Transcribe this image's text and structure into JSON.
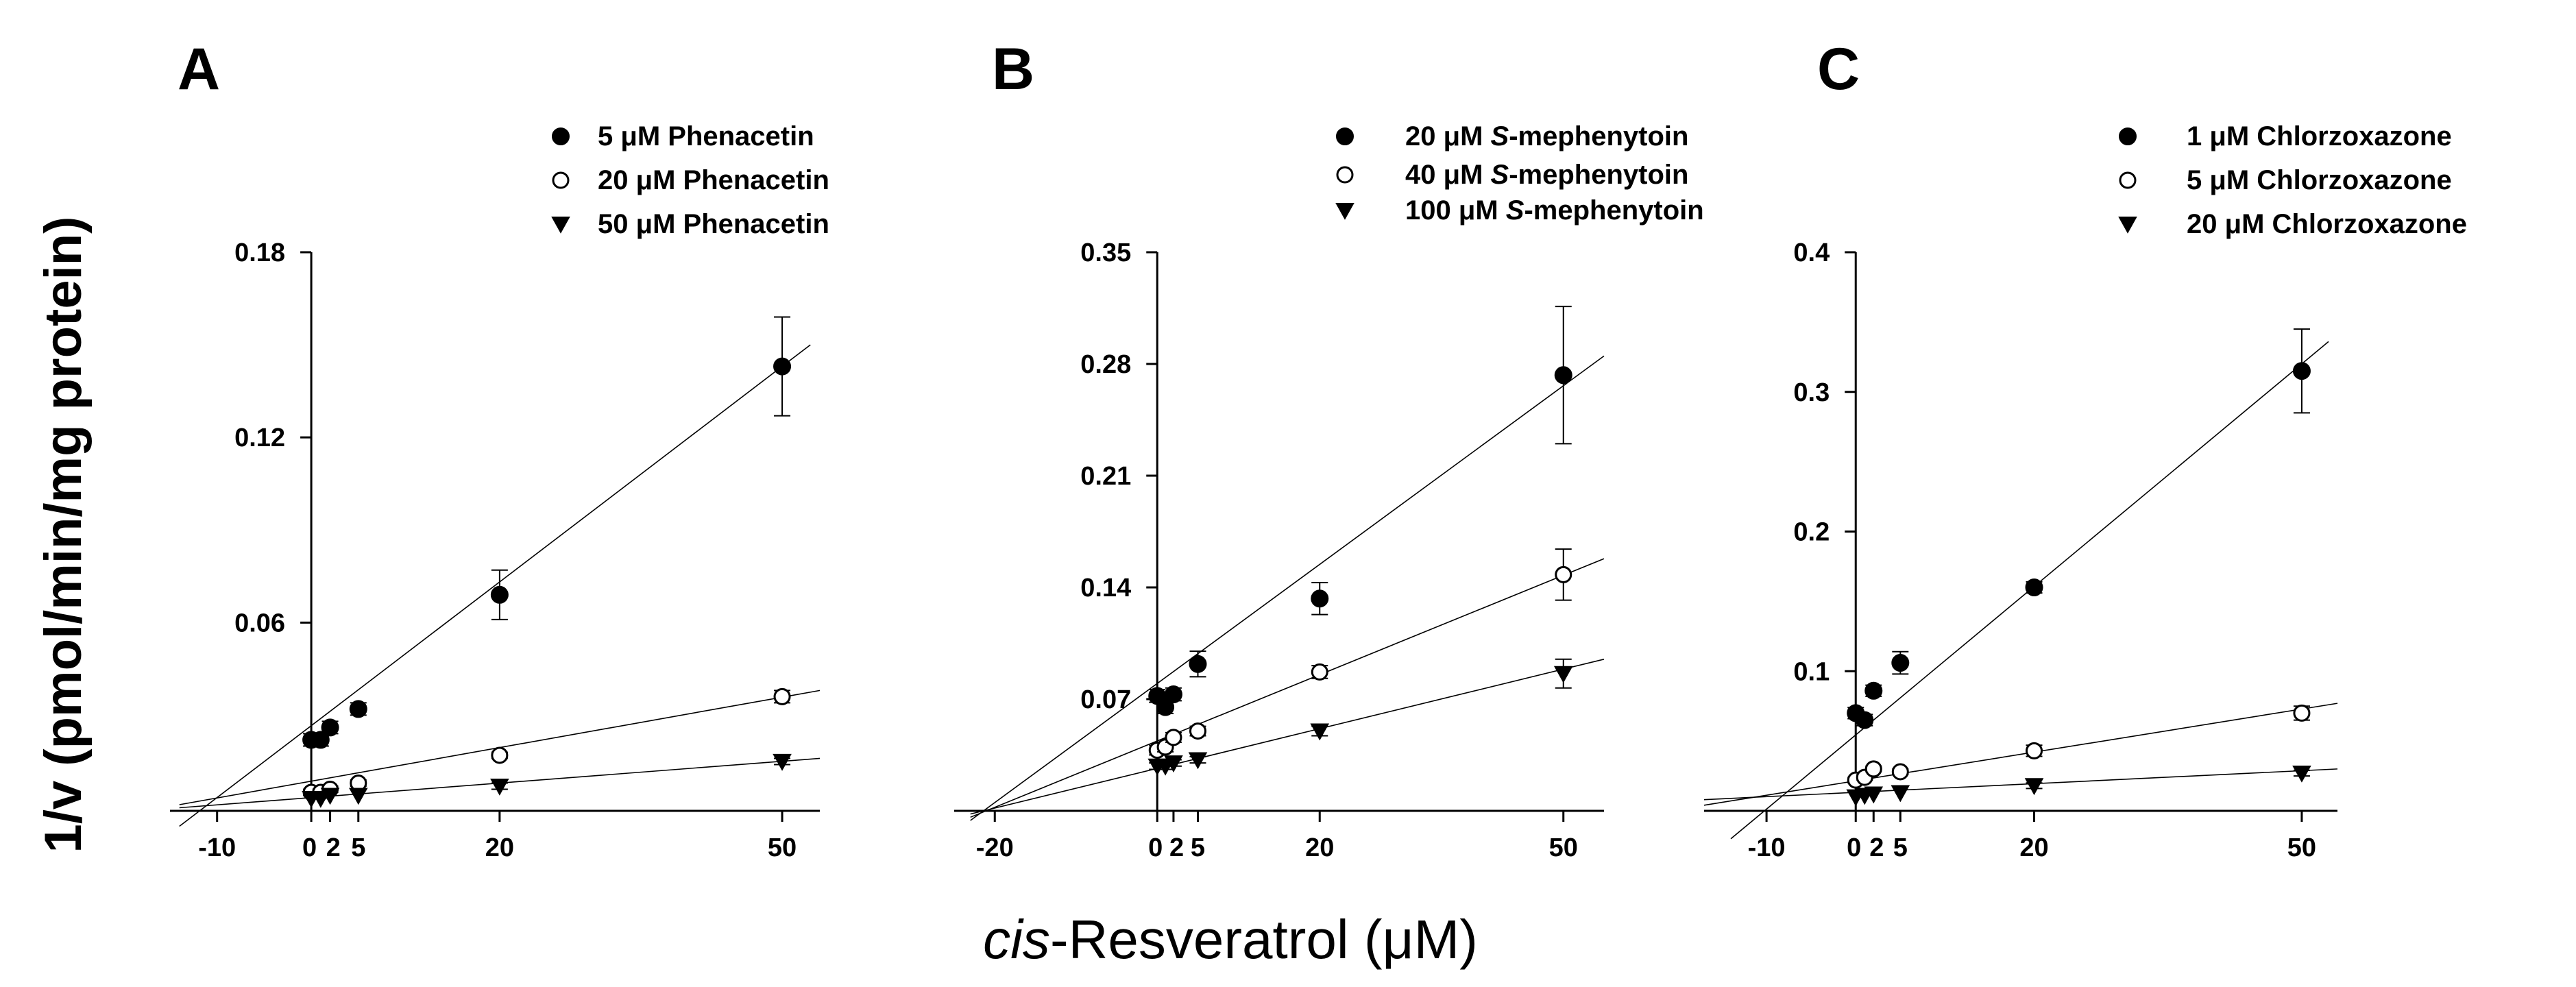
{
  "ylabel": "1/v (pmol/min/mg protein)",
  "xlabel": {
    "italic": "cis",
    "rest": "-Resveratrol (μM)"
  },
  "chart_data": [
    {
      "type": "scatter",
      "panel": "A",
      "x_ticks": [
        -10,
        0,
        2,
        5,
        20,
        50
      ],
      "x_tick_labels": [
        "-10",
        "0",
        "2",
        "5",
        "20",
        "50"
      ],
      "y_ticks": [
        0.06,
        0.12,
        0.18
      ],
      "y_tick_labels": [
        "0.06",
        "0.12",
        "0.18"
      ],
      "xlim": [
        -15,
        54
      ],
      "ylim": [
        -0.001,
        0.18
      ],
      "x": [
        0,
        1,
        2,
        5,
        20,
        50
      ],
      "series": [
        {
          "name": "5 μM Phenacetin",
          "marker": "filled-circle",
          "values": [
            0.022,
            0.022,
            0.026,
            0.032,
            0.069,
            0.143
          ],
          "errors": [
            0.002,
            0.002,
            0.002,
            0.002,
            0.008,
            0.016
          ],
          "line": [
            [
              -14,
              -0.006
            ],
            [
              53,
              0.15
            ]
          ]
        },
        {
          "name": "20 μM Phenacetin",
          "marker": "open-circle",
          "values": [
            0.005,
            0.005,
            0.006,
            0.008,
            0.017,
            0.036
          ],
          "errors": [
            0.001,
            0.001,
            0.001,
            0.001,
            0.001,
            0.002
          ],
          "line": [
            [
              -14,
              0.001
            ],
            [
              54,
              0.038
            ]
          ]
        },
        {
          "name": "50 μM Phenacetin",
          "marker": "filled-triangle",
          "values": [
            0.003,
            0.003,
            0.004,
            0.004,
            0.007,
            0.015
          ],
          "errors": [
            0.0005,
            0.0005,
            0.0005,
            0.0005,
            0.001,
            0.001
          ],
          "line": [
            [
              -14,
              0.0
            ],
            [
              54,
              0.016
            ]
          ]
        }
      ]
    },
    {
      "type": "scatter",
      "panel": "B",
      "x_ticks": [
        -20,
        0,
        2,
        5,
        20,
        50
      ],
      "x_tick_labels": [
        "-20",
        "0",
        "2",
        "5",
        "20",
        "50"
      ],
      "y_ticks": [
        0.07,
        0.14,
        0.21,
        0.28,
        0.35
      ],
      "y_tick_labels": [
        "0.07",
        "0.14",
        "0.21",
        "0.28",
        "0.35"
      ],
      "xlim": [
        -25,
        55
      ],
      "ylim": [
        0,
        0.35
      ],
      "x": [
        0,
        1,
        2,
        5,
        20,
        50
      ],
      "series": [
        {
          "name_parts": [
            "20 μM ",
            "S",
            "-mephenytoin"
          ],
          "marker": "filled-circle",
          "values": [
            0.072,
            0.065,
            0.073,
            0.092,
            0.133,
            0.273
          ],
          "errors": [
            0.004,
            0.004,
            0.004,
            0.008,
            0.01,
            0.043
          ],
          "line": [
            [
              -23,
              -0.006
            ],
            [
              55,
              0.285
            ]
          ]
        },
        {
          "name_parts": [
            "40 μM ",
            "S",
            "-mephenytoin"
          ],
          "marker": "open-circle",
          "values": [
            0.038,
            0.04,
            0.046,
            0.05,
            0.087,
            0.148
          ],
          "errors": [
            0.003,
            0.003,
            0.003,
            0.003,
            0.004,
            0.016
          ],
          "line": [
            [
              -23,
              -0.004
            ],
            [
              55,
              0.158
            ]
          ]
        },
        {
          "name_parts": [
            "100 μM ",
            "S",
            "-mephenytoin"
          ],
          "marker": "filled-triangle",
          "values": [
            0.028,
            0.028,
            0.03,
            0.032,
            0.05,
            0.086
          ],
          "errors": [
            0.002,
            0.002,
            0.002,
            0.002,
            0.003,
            0.009
          ],
          "line": [
            [
              -23,
              -0.002
            ],
            [
              55,
              0.095
            ]
          ]
        }
      ]
    },
    {
      "type": "scatter",
      "panel": "C",
      "x_ticks": [
        -10,
        0,
        2,
        5,
        20,
        50
      ],
      "x_tick_labels": [
        "-10",
        "0",
        "2",
        "5",
        "20",
        "50"
      ],
      "y_ticks": [
        0.1,
        0.2,
        0.3,
        0.4
      ],
      "y_tick_labels": [
        "0.1",
        "0.2",
        "0.3",
        "0.4"
      ],
      "xlim": [
        -17,
        54
      ],
      "ylim": [
        0,
        0.4
      ],
      "x": [
        0,
        1,
        2,
        5,
        20,
        50
      ],
      "series": [
        {
          "name": "1 μM Chlorzoxazone",
          "marker": "filled-circle",
          "values": [
            0.07,
            0.065,
            0.086,
            0.106,
            0.16,
            0.315
          ],
          "errors": [
            0.004,
            0.004,
            0.004,
            0.008,
            0.004,
            0.03
          ],
          "line": [
            [
              -14,
              -0.02
            ],
            [
              53,
              0.336
            ]
          ]
        },
        {
          "name": "5 μM Chlorzoxazone",
          "marker": "open-circle",
          "values": [
            0.022,
            0.024,
            0.03,
            0.028,
            0.043,
            0.07
          ],
          "errors": [
            0.002,
            0.002,
            0.002,
            0.002,
            0.004,
            0.005
          ],
          "line": [
            [
              -17,
              0.004
            ],
            [
              54,
              0.077
            ]
          ]
        },
        {
          "name": "20 μM Chlorzoxazone",
          "marker": "filled-triangle",
          "values": [
            0.01,
            0.011,
            0.012,
            0.013,
            0.018,
            0.027
          ],
          "errors": [
            0.001,
            0.001,
            0.001,
            0.001,
            0.002,
            0.002
          ],
          "line": [
            [
              -17,
              0.008
            ],
            [
              54,
              0.03
            ]
          ]
        }
      ]
    }
  ]
}
